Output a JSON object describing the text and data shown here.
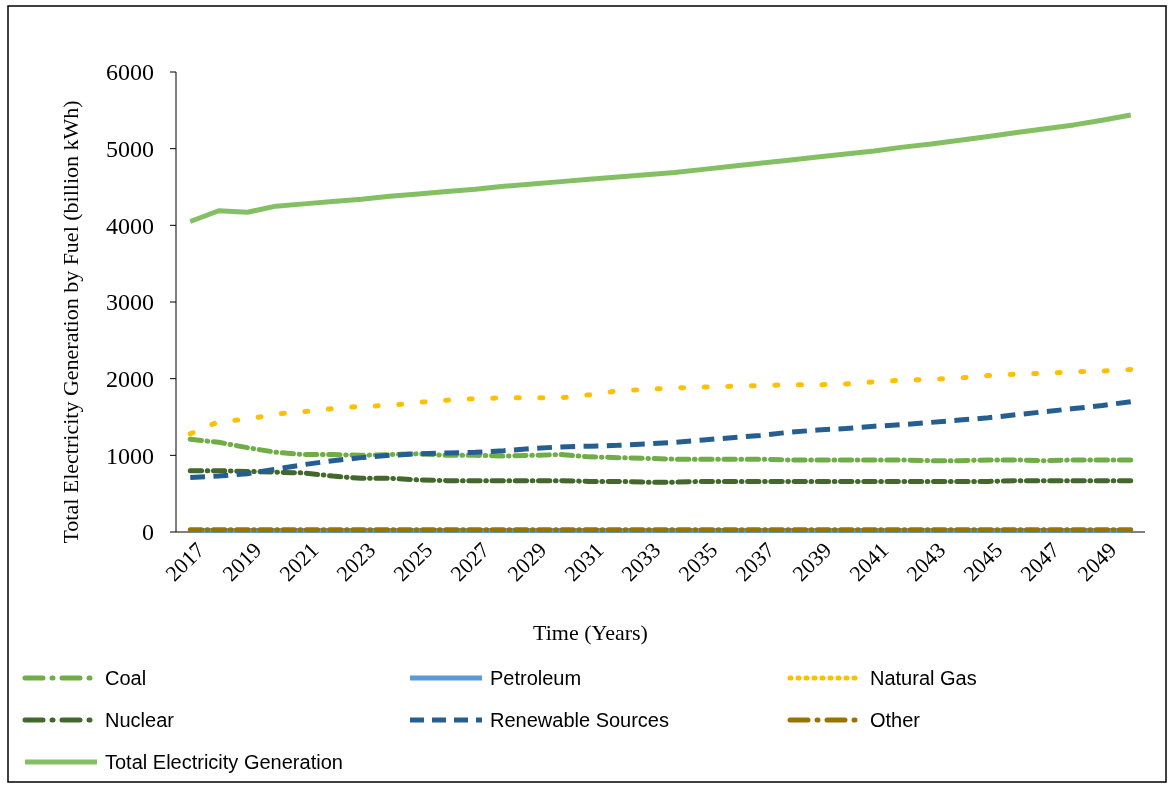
{
  "chart_data": {
    "type": "line",
    "xlabel": "Time (Years)",
    "ylabel": "Total Electricity Generation by Fuel (billion kWh)",
    "categories": [
      "2017",
      null,
      "2019",
      null,
      "2021",
      null,
      "2023",
      null,
      "2025",
      null,
      "2027",
      null,
      "2029",
      null,
      "2031",
      null,
      "2033",
      null,
      "2035",
      null,
      "2037",
      null,
      "2039",
      null,
      "2041",
      null,
      "2043",
      null,
      "2045",
      null,
      "2047",
      null,
      "2049",
      null
    ],
    "ylim": [
      0,
      6000
    ],
    "yticks": [
      0,
      1000,
      2000,
      3000,
      4000,
      5000,
      6000
    ],
    "grid": false,
    "legend": "bottom",
    "series": [
      {
        "name": "Coal",
        "color": "#70ad47",
        "line_style": "dashdot",
        "values": [
          1210,
          1170,
          1100,
          1040,
          1010,
          1010,
          1000,
          1010,
          1020,
          1000,
          1000,
          990,
          1000,
          1010,
          980,
          970,
          960,
          950,
          950,
          950,
          950,
          940,
          940,
          940,
          940,
          940,
          930,
          930,
          940,
          940,
          930,
          940,
          940,
          940
        ]
      },
      {
        "name": "Petroleum",
        "color": "#5b9bd5",
        "line_style": "solid",
        "values": [
          20,
          20,
          20,
          20,
          20,
          20,
          20,
          20,
          20,
          20,
          20,
          20,
          20,
          20,
          20,
          20,
          20,
          20,
          20,
          20,
          20,
          20,
          20,
          20,
          20,
          20,
          20,
          20,
          20,
          20,
          20,
          20,
          20,
          20
        ]
      },
      {
        "name": "Natural Gas",
        "color": "#ffc000",
        "line_style": "dotted",
        "values": [
          1280,
          1440,
          1470,
          1540,
          1570,
          1610,
          1640,
          1650,
          1690,
          1720,
          1740,
          1750,
          1750,
          1750,
          1790,
          1840,
          1860,
          1880,
          1890,
          1900,
          1910,
          1920,
          1920,
          1930,
          1960,
          1980,
          1990,
          2010,
          2040,
          2060,
          2070,
          2090,
          2100,
          2120
        ]
      },
      {
        "name": "Nuclear",
        "color": "#43682b",
        "line_style": "dashdot",
        "values": [
          800,
          800,
          790,
          780,
          770,
          730,
          700,
          700,
          680,
          670,
          670,
          670,
          670,
          670,
          660,
          660,
          650,
          650,
          660,
          660,
          660,
          660,
          660,
          660,
          660,
          660,
          660,
          660,
          660,
          670,
          670,
          670,
          670,
          670
        ]
      },
      {
        "name": "Renewable Sources",
        "color": "#255e91",
        "line_style": "dashed",
        "values": [
          710,
          730,
          760,
          820,
          880,
          930,
          970,
          1000,
          1020,
          1030,
          1040,
          1060,
          1090,
          1110,
          1120,
          1130,
          1150,
          1170,
          1200,
          1230,
          1260,
          1300,
          1330,
          1350,
          1380,
          1400,
          1430,
          1460,
          1490,
          1530,
          1570,
          1610,
          1650,
          1700
        ]
      },
      {
        "name": "Other",
        "color": "#997300",
        "line_style": "dashdot",
        "values": [
          30,
          30,
          30,
          30,
          30,
          30,
          30,
          30,
          30,
          30,
          30,
          30,
          30,
          30,
          30,
          30,
          30,
          30,
          30,
          30,
          30,
          30,
          30,
          30,
          30,
          30,
          30,
          30,
          30,
          30,
          30,
          30,
          30,
          30
        ]
      },
      {
        "name": "Total Electricity Generation",
        "color": "#84c063",
        "line_style": "solid",
        "values": [
          4050,
          4190,
          4170,
          4250,
          4280,
          4310,
          4340,
          4380,
          4410,
          4440,
          4470,
          4510,
          4540,
          4570,
          4600,
          4630,
          4660,
          4690,
          4730,
          4770,
          4810,
          4850,
          4890,
          4930,
          4970,
          5020,
          5060,
          5110,
          5160,
          5210,
          5260,
          5310,
          5370,
          5440
        ]
      }
    ]
  }
}
